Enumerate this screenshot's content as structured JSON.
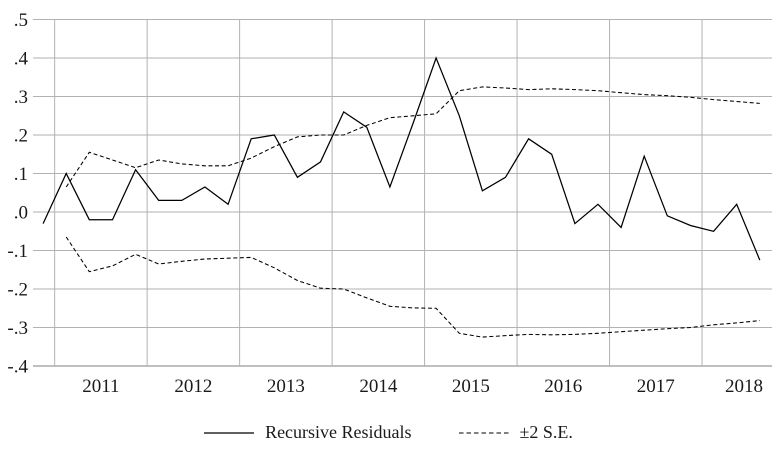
{
  "chart_data": {
    "type": "line",
    "title": "",
    "xlabel": "",
    "ylabel": "",
    "x_frequency": "quarterly",
    "categories": [
      "2010Q4",
      "2011Q1",
      "2011Q2",
      "2011Q3",
      "2011Q4",
      "2012Q1",
      "2012Q2",
      "2012Q3",
      "2012Q4",
      "2013Q1",
      "2013Q2",
      "2013Q3",
      "2013Q4",
      "2014Q1",
      "2014Q2",
      "2014Q3",
      "2014Q4",
      "2015Q1",
      "2015Q2",
      "2015Q3",
      "2015Q4",
      "2016Q1",
      "2016Q2",
      "2016Q3",
      "2016Q4",
      "2017Q1",
      "2017Q2",
      "2017Q3",
      "2017Q4",
      "2018Q1",
      "2018Q2",
      "2018Q3"
    ],
    "series": [
      {
        "name": "Recursive Residuals",
        "style": "solid",
        "start_index": 0,
        "values": [
          -0.03,
          0.1,
          -0.02,
          -0.02,
          0.11,
          0.03,
          0.03,
          0.065,
          0.02,
          0.19,
          0.2,
          0.09,
          0.13,
          0.26,
          0.22,
          0.065,
          0.23,
          0.4,
          0.25,
          0.055,
          0.09,
          0.19,
          0.15,
          -0.03,
          0.02,
          -0.04,
          0.145,
          -0.01,
          -0.035,
          -0.05,
          0.02,
          -0.125
        ]
      },
      {
        "name": "+2 S.E.",
        "style": "dashed",
        "start_index": 1,
        "values": [
          0.065,
          0.155,
          0.135,
          0.115,
          0.135,
          0.125,
          0.12,
          0.12,
          0.14,
          0.17,
          0.195,
          0.2,
          0.2,
          0.225,
          0.245,
          0.25,
          0.255,
          0.315,
          0.325,
          0.322,
          0.318,
          0.32,
          0.318,
          0.315,
          0.31,
          0.305,
          0.302,
          0.298,
          0.292,
          0.287,
          0.282
        ]
      },
      {
        "name": "-2 S.E.",
        "style": "dashed",
        "start_index": 1,
        "values": [
          -0.065,
          -0.155,
          -0.14,
          -0.11,
          -0.135,
          -0.128,
          -0.122,
          -0.12,
          -0.118,
          -0.145,
          -0.178,
          -0.198,
          -0.2,
          -0.223,
          -0.245,
          -0.249,
          -0.25,
          -0.315,
          -0.325,
          -0.321,
          -0.318,
          -0.319,
          -0.318,
          -0.315,
          -0.311,
          -0.307,
          -0.303,
          -0.3,
          -0.293,
          -0.288,
          -0.282
        ]
      }
    ],
    "y_ticks": [
      {
        "label": ".5",
        "value": 0.5
      },
      {
        "label": ".4",
        "value": 0.4
      },
      {
        "label": ".3",
        "value": 0.3
      },
      {
        "label": ".2",
        "value": 0.2
      },
      {
        "label": ".1",
        "value": 0.1
      },
      {
        "label": ".0",
        "value": 0.0
      },
      {
        "label": "-.1",
        "value": -0.1
      },
      {
        "label": "-.2",
        "value": -0.2
      },
      {
        "label": "-.3",
        "value": -0.3
      },
      {
        "label": "-.4",
        "value": -0.4
      }
    ],
    "x_tick_labels": [
      "2011",
      "2012",
      "2013",
      "2014",
      "2015",
      "2016",
      "2017",
      "2018"
    ],
    "ylim": [
      -0.4,
      0.5
    ],
    "grid": true,
    "legend_position": "bottom",
    "colors": {
      "line": "#000000",
      "grid": "#b2b2b2",
      "axis": "#999999",
      "text": "#1a1a1a",
      "background": "#ffffff"
    }
  },
  "legend": {
    "items": [
      {
        "label": "Recursive Residuals",
        "style": "solid"
      },
      {
        "label": "±2 S.E.",
        "style": "dashed"
      }
    ]
  }
}
